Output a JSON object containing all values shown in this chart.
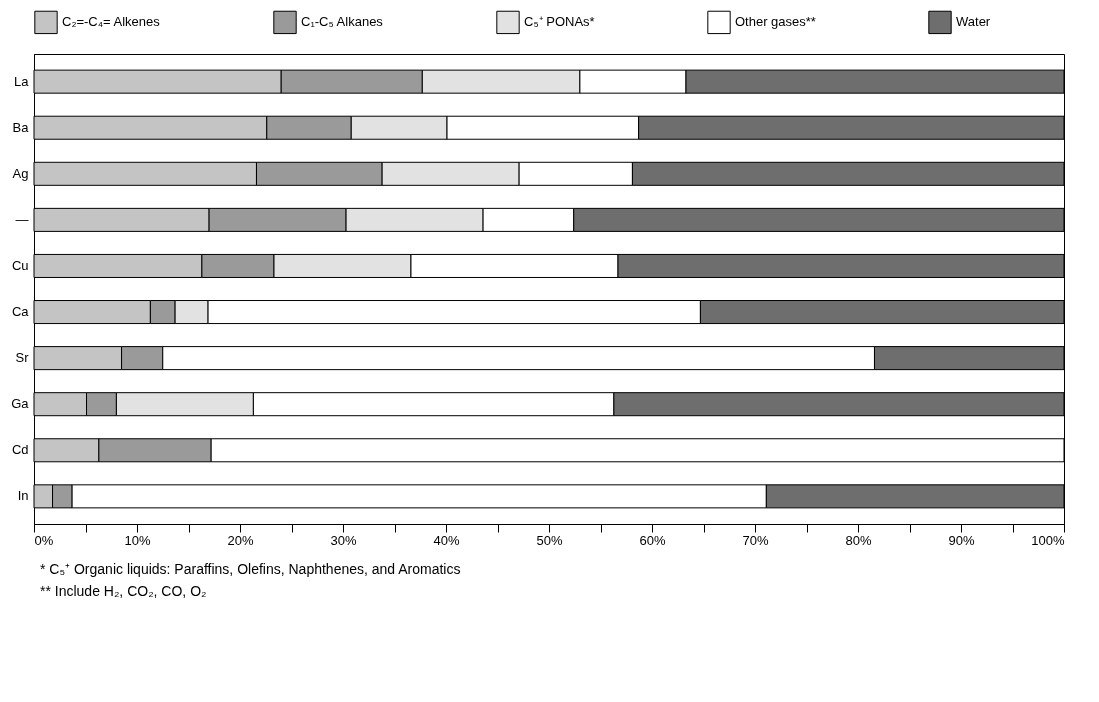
{
  "chart_data": {
    "type": "bar",
    "orientation": "horizontal",
    "stacked": true,
    "categories": [
      "La",
      "Ba",
      "Ag",
      "—",
      "Cu",
      "Ca",
      "Sr",
      "Ga",
      "Cd",
      "In"
    ],
    "series": [
      {
        "name": "C₂=-C₄= Alkenes",
        "color": "#c4c4c4",
        "values": [
          24,
          22.6,
          21.6,
          17,
          16.3,
          11.3,
          8.5,
          5.1,
          6.3,
          1.8
        ]
      },
      {
        "name": "C₁-C₅ Alkanes",
        "color": "#9a9a9a",
        "values": [
          13.7,
          8.2,
          12.2,
          13.3,
          7,
          2.4,
          4,
          2.9,
          10.9,
          1.9
        ]
      },
      {
        "name": "C₅⁺ PONAs*",
        "color": "#e2e2e2",
        "values": [
          15.3,
          9.3,
          13.3,
          13.3,
          13.3,
          3.2,
          0,
          13.3,
          0,
          0
        ]
      },
      {
        "name": "Other gases**",
        "color": "#ffffff",
        "values": [
          10.3,
          18.6,
          11,
          8.8,
          20.1,
          47.8,
          69.1,
          35,
          82.8,
          67.4
        ]
      },
      {
        "name": "Water",
        "color": "#6e6e6e",
        "values": [
          36.7,
          41.3,
          41.9,
          47.6,
          43.3,
          35.3,
          18.4,
          43.7,
          0,
          28.9
        ]
      }
    ],
    "xlim": [
      0,
      100
    ],
    "xticks": [
      {
        "value": 0,
        "label": "0%"
      },
      {
        "value": 5,
        "label": null
      },
      {
        "value": 10,
        "label": "10%"
      },
      {
        "value": 15,
        "label": null
      },
      {
        "value": 20,
        "label": "20%"
      },
      {
        "value": 25,
        "label": null
      },
      {
        "value": 30,
        "label": "30%"
      },
      {
        "value": 35,
        "label": null
      },
      {
        "value": 40,
        "label": "40%"
      },
      {
        "value": 45,
        "label": null
      },
      {
        "value": 50,
        "label": "50%"
      },
      {
        "value": 55,
        "label": null
      },
      {
        "value": 60,
        "label": "60%"
      },
      {
        "value": 65,
        "label": null
      },
      {
        "value": 70,
        "label": "70%"
      },
      {
        "value": 75,
        "label": null
      },
      {
        "value": 80,
        "label": "80%"
      },
      {
        "value": 85,
        "label": null
      },
      {
        "value": 90,
        "label": "90%"
      },
      {
        "value": 95,
        "label": null
      },
      {
        "value": 100,
        "label": "100%"
      }
    ],
    "grid": false,
    "legend": "top",
    "annotations": [
      "* C₅⁺ Organic liquids: Paraffins, Olefins, Naphthenes, and Aromatics",
      "** Include H₂, CO₂, CO, O₂"
    ]
  }
}
